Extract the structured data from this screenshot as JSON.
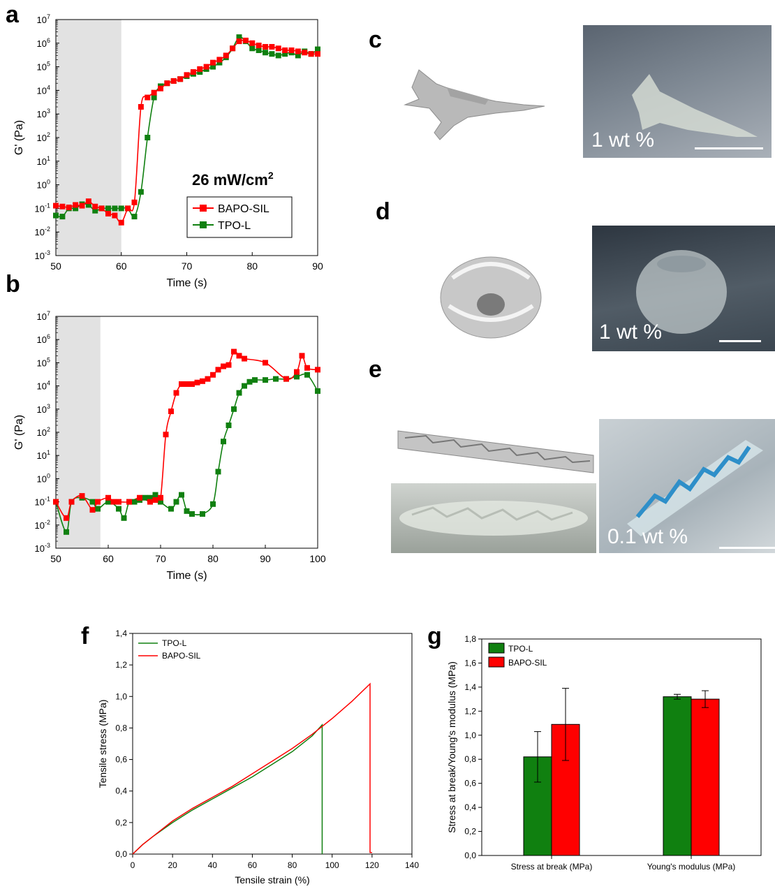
{
  "panel_labels": {
    "a": "a",
    "b": "b",
    "c": "c",
    "d": "d",
    "e": "e",
    "f": "f",
    "g": "g"
  },
  "photos": {
    "c": {
      "caption": "1 wt %"
    },
    "d": {
      "caption": "1 wt %"
    },
    "e": {
      "caption": "0.1 wt %"
    }
  },
  "colors": {
    "red": "#ff0000",
    "green": "#108010",
    "shade": "#e2e2e2"
  },
  "chart_data": [
    {
      "id": "a",
      "type": "scatter",
      "title": "",
      "xlabel": "Time (s)",
      "ylabel": "G' (Pa)",
      "xlim": [
        50,
        90
      ],
      "ylim_exp": [
        -3,
        7
      ],
      "yscale": "log",
      "xticks": [
        50,
        60,
        70,
        80,
        90
      ],
      "yticks_exp": [
        -3,
        -2,
        -1,
        0,
        1,
        2,
        3,
        4,
        5,
        6,
        7
      ],
      "shaded_range": [
        50,
        60
      ],
      "annotation": "26 mW/cm",
      "annotation_sup": "2",
      "legend": {
        "position": "right-middle",
        "entries": [
          "BAPO-SIL",
          "TPO-L"
        ]
      },
      "series": [
        {
          "name": "BAPO-SIL",
          "color": "#ff0000",
          "x": [
            50,
            51,
            52,
            53,
            54,
            55,
            56,
            57,
            58,
            59,
            60,
            61,
            62,
            63,
            64,
            65,
            66,
            67,
            68,
            69,
            70,
            71,
            72,
            73,
            74,
            75,
            76,
            77,
            78,
            79,
            80,
            81,
            82,
            83,
            84,
            85,
            86,
            87,
            88,
            89,
            90
          ],
          "y": [
            0.13,
            0.12,
            0.11,
            0.14,
            0.13,
            0.2,
            0.12,
            0.1,
            0.06,
            0.05,
            0.025,
            0.1,
            0.18,
            2000,
            5000,
            8000,
            12000,
            20000,
            25000,
            30000,
            45000,
            60000,
            80000,
            100000,
            150000,
            200000,
            300000,
            600000,
            1200000,
            1300000,
            1000000,
            800000,
            700000,
            700000,
            600000,
            500000,
            500000,
            450000,
            400000,
            350000,
            350000
          ]
        },
        {
          "name": "TPO-L",
          "color": "#108010",
          "x": [
            50,
            51,
            52,
            53,
            54,
            55,
            56,
            57,
            58,
            59,
            60,
            61,
            62,
            63,
            64,
            65,
            66,
            67,
            68,
            69,
            70,
            71,
            72,
            73,
            74,
            75,
            76,
            77,
            78,
            79,
            80,
            81,
            82,
            83,
            84,
            85,
            86,
            87,
            88,
            89,
            90
          ],
          "y": [
            0.05,
            0.045,
            0.1,
            0.1,
            0.15,
            0.14,
            0.08,
            0.1,
            0.1,
            0.1,
            0.1,
            0.1,
            0.045,
            0.5,
            100,
            5000,
            15000,
            20000,
            25000,
            30000,
            40000,
            50000,
            60000,
            80000,
            100000,
            150000,
            250000,
            600000,
            1800000,
            1200000,
            600000,
            500000,
            400000,
            350000,
            300000,
            350000,
            400000,
            300000,
            450000,
            350000,
            550000
          ]
        }
      ]
    },
    {
      "id": "b",
      "type": "scatter",
      "title": "",
      "xlabel": "Time (s)",
      "ylabel": "G' (Pa)",
      "xlim": [
        50,
        100
      ],
      "ylim_exp": [
        -3,
        7
      ],
      "yscale": "log",
      "xticks": [
        50,
        60,
        70,
        80,
        90,
        100
      ],
      "yticks_exp": [
        -3,
        -2,
        -1,
        0,
        1,
        2,
        3,
        4,
        5,
        6,
        7
      ],
      "shaded_range": [
        50,
        58.5
      ],
      "series": [
        {
          "name": "BAPO-SIL",
          "color": "#ff0000",
          "x": [
            50,
            52,
            53,
            55,
            57,
            58,
            60,
            61,
            62,
            64,
            66,
            68,
            69,
            70,
            71,
            72,
            73,
            74,
            75,
            76,
            77,
            78,
            79,
            80,
            81,
            82,
            83,
            84,
            85,
            86,
            90,
            94,
            96,
            97,
            98,
            100
          ],
          "y": [
            0.1,
            0.02,
            0.1,
            0.18,
            0.045,
            0.1,
            0.15,
            0.1,
            0.1,
            0.1,
            0.15,
            0.1,
            0.12,
            0.15,
            80,
            800,
            5000,
            12000,
            12000,
            12000,
            14000,
            16000,
            20000,
            30000,
            50000,
            70000,
            80000,
            300000,
            200000,
            150000,
            100000,
            20000,
            40000,
            200000,
            60000,
            50000
          ]
        },
        {
          "name": "TPO-L",
          "color": "#108010",
          "x": [
            50,
            52,
            53,
            55,
            57,
            58,
            60,
            62,
            63,
            64,
            65,
            66,
            67,
            68,
            69,
            70,
            72,
            73,
            74,
            75,
            76,
            78,
            80,
            81,
            82,
            83,
            84,
            85,
            86,
            87,
            88,
            90,
            92,
            94,
            96,
            98,
            100
          ],
          "y": [
            0.1,
            0.005,
            0.1,
            0.15,
            0.1,
            0.05,
            0.1,
            0.05,
            0.02,
            0.1,
            0.1,
            0.12,
            0.15,
            0.15,
            0.2,
            0.1,
            0.05,
            0.1,
            0.2,
            0.04,
            0.03,
            0.03,
            0.08,
            2,
            40,
            200,
            1000,
            5000,
            10000,
            15000,
            18000,
            18000,
            20000,
            20000,
            25000,
            30000,
            6000
          ]
        }
      ]
    },
    {
      "id": "f",
      "type": "line",
      "title": "",
      "xlabel": "Tensile strain (%)",
      "ylabel": "Tensile stress (MPa)",
      "xlim": [
        0,
        140
      ],
      "ylim": [
        0,
        1.4
      ],
      "xticks": [
        0,
        20,
        40,
        60,
        80,
        100,
        120,
        140
      ],
      "yticks": [
        0,
        0.2,
        0.4,
        0.6,
        0.8,
        1.0,
        1.2,
        1.4
      ],
      "ytick_labels": [
        "0,0",
        "0,2",
        "0,4",
        "0,6",
        "0,8",
        "1,0",
        "1,2",
        "1,4"
      ],
      "legend": {
        "position": "top-left",
        "entries": [
          "TPO-L",
          "BAPO-SIL"
        ]
      },
      "series": [
        {
          "name": "TPO-L",
          "color": "#108010",
          "x": [
            0,
            5,
            10,
            20,
            30,
            40,
            50,
            60,
            70,
            80,
            90,
            95,
            95
          ],
          "y": [
            0,
            0.06,
            0.11,
            0.2,
            0.28,
            0.35,
            0.42,
            0.49,
            0.57,
            0.65,
            0.75,
            0.82,
            0
          ]
        },
        {
          "name": "BAPO-SIL",
          "color": "#ff0000",
          "x": [
            0,
            5,
            10,
            20,
            30,
            40,
            50,
            60,
            70,
            80,
            90,
            100,
            110,
            119,
            119,
            120
          ],
          "y": [
            0,
            0.06,
            0.11,
            0.21,
            0.29,
            0.36,
            0.43,
            0.51,
            0.59,
            0.67,
            0.76,
            0.86,
            0.97,
            1.08,
            0.01,
            0.01
          ]
        }
      ]
    },
    {
      "id": "g",
      "type": "bar",
      "title": "",
      "xlabel": "",
      "ylabel": "Stress at break/Young's modulus (MPa)",
      "categories": [
        "Stress at break (MPa)",
        "Young's modulus (MPa)"
      ],
      "ylim": [
        0,
        1.8
      ],
      "yticks": [
        0,
        0.2,
        0.4,
        0.6,
        0.8,
        1.0,
        1.2,
        1.4,
        1.6,
        1.8
      ],
      "ytick_labels": [
        "0,0",
        "0,2",
        "0,4",
        "0,6",
        "0,8",
        "1,0",
        "1,2",
        "1,4",
        "1,6",
        "1,8"
      ],
      "legend": {
        "position": "top-left",
        "entries": [
          "TPO-L",
          "BAPO-SIL"
        ]
      },
      "series": [
        {
          "name": "TPO-L",
          "color": "#108010",
          "values": [
            0.82,
            1.32
          ],
          "errors": [
            0.21,
            0.02
          ]
        },
        {
          "name": "BAPO-SIL",
          "color": "#ff0000",
          "values": [
            1.09,
            1.3
          ],
          "errors": [
            0.3,
            0.07
          ]
        }
      ]
    }
  ]
}
